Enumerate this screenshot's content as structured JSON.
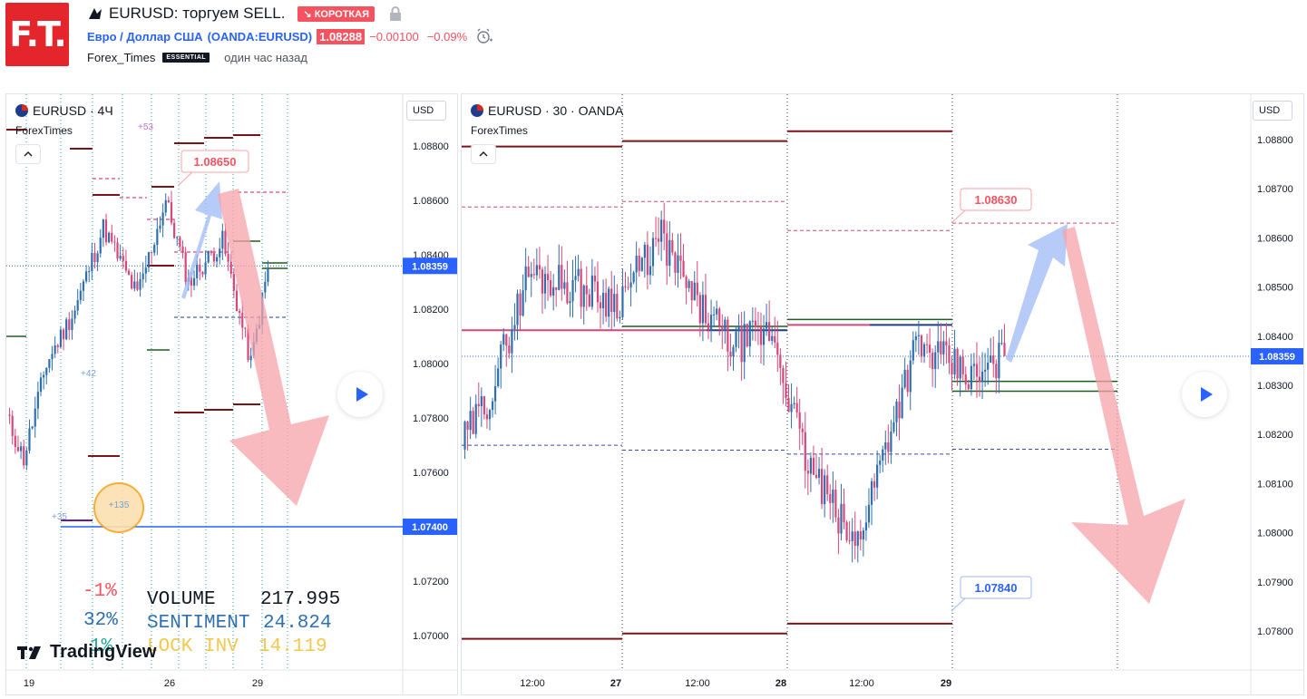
{
  "header": {
    "logo_text": "F.T.",
    "title": "EURUSD: торгуем SELL.",
    "short_badge": "↘ КОРОТКАЯ",
    "symbol_name": "Евро / Доллар США",
    "symbol_exchange": "(OANDA:EURUSD)",
    "price": "1.08288",
    "change": "−0.00100",
    "change_pct": "−0.09%",
    "author": "Forex_Times",
    "author_badge": "ESSENTIAL",
    "published": "один час назад"
  },
  "left_chart": {
    "title": "EURUSD · 4Ч",
    "author": "ForexTimes",
    "currency": "USD",
    "price_ticks": [
      "1.08800",
      "1.08600",
      "1.08400",
      "1.08200",
      "1.08000",
      "1.07800",
      "1.07600",
      "1.07400",
      "1.07200",
      "1.07000"
    ],
    "current_price": "1.08359",
    "target_price": "1.07400",
    "label_high": "1.08650",
    "time_ticks": [
      "19",
      "26",
      "29"
    ],
    "small_labels": [
      "+53",
      "+42",
      "+35",
      "+135"
    ],
    "stats": {
      "pct1": "-1%",
      "pct2": "32%",
      "pct3": "1%",
      "vol_label": "VOLUME",
      "vol_value": "217.995",
      "sent_label": "SENTIMENT",
      "sent_value": "24.824",
      "lock_label": "LOCK INV",
      "lock_value": "14.119"
    },
    "tv_logo": "TradingView"
  },
  "right_chart": {
    "title": "EURUSD · 30 · OANDA",
    "author": "ForexTimes",
    "currency": "USD",
    "price_ticks": [
      "1.08800",
      "1.08700",
      "1.08600",
      "1.08500",
      "1.08400",
      "1.08300",
      "1.08200",
      "1.08100",
      "1.08000",
      "1.07900",
      "1.07800"
    ],
    "current_price": "1.08359",
    "label_high": "1.08630",
    "label_low": "1.07840",
    "time_ticks": [
      "12:00",
      "27",
      "12:00",
      "28",
      "12:00",
      "29"
    ]
  },
  "colors": {
    "up": "#2e6fb0",
    "down": "#d9467a",
    "bear_arrow": "#f7a3aa",
    "bull_arrow": "#9db9f5",
    "level_dark": "#7a1418",
    "accent_red": "#f7525f",
    "accent_blue": "#2962ff"
  }
}
